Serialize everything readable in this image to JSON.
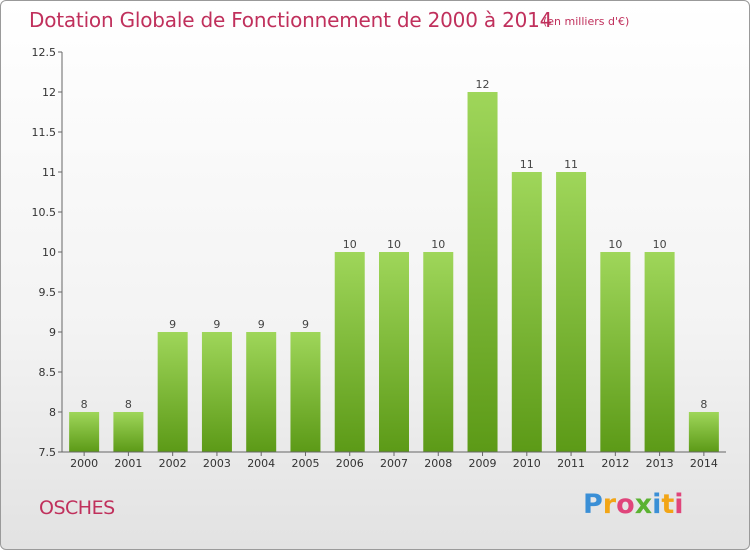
{
  "title": "Dotation Globale de Fonctionnement de 2000 à 2014",
  "unit_note": "(en milliers d'€)",
  "commune": "OSCHES",
  "logo": {
    "text": "Proxiti",
    "letters": [
      {
        "ch": "P",
        "color": "#3a8fd6"
      },
      {
        "ch": "r",
        "color": "#f2a516"
      },
      {
        "ch": "o",
        "color": "#e0457b"
      },
      {
        "ch": "x",
        "color": "#5bb231"
      },
      {
        "ch": "i",
        "color": "#3a8fd6"
      },
      {
        "ch": "t",
        "color": "#f2a516"
      },
      {
        "ch": "i",
        "color": "#e0457b"
      }
    ]
  },
  "colors": {
    "bar_top": "#9fd65a",
    "bar_bottom": "#5c9a17",
    "title": "#c0305c",
    "axis": "#666666"
  },
  "chart_data": {
    "type": "bar",
    "title": "Dotation Globale de Fonctionnement de 2000 à 2014",
    "subtitle": "(en milliers d'€)",
    "xlabel": "",
    "ylabel": "",
    "ylim": [
      7.5,
      12.5
    ],
    "yticks": [
      7.5,
      8,
      8.5,
      9,
      9.5,
      10,
      10.5,
      11,
      11.5,
      12,
      12.5
    ],
    "ytick_labels": [
      "7.5",
      "8",
      "8.5",
      "9",
      "9.5",
      "10",
      "10.5",
      "11",
      "11.5",
      "12",
      "12.5"
    ],
    "grid": false,
    "categories": [
      "2000",
      "2001",
      "2002",
      "2003",
      "2004",
      "2005",
      "2006",
      "2007",
      "2008",
      "2009",
      "2010",
      "2011",
      "2012",
      "2013",
      "2014"
    ],
    "values": [
      8,
      8,
      9,
      9,
      9,
      9,
      10,
      10,
      10,
      12,
      11,
      11,
      10,
      10,
      8
    ],
    "value_labels": [
      "8",
      "8",
      "9",
      "9",
      "9",
      "9",
      "10",
      "10",
      "10",
      "12",
      "11",
      "11",
      "10",
      "10",
      "8"
    ]
  }
}
